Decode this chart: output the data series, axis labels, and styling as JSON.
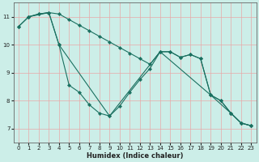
{
  "xlabel": "Humidex (Indice chaleur)",
  "background_color": "#cceee8",
  "grid_color": "#e8a8a8",
  "line_color": "#1a7060",
  "xlim": [
    -0.5,
    23.5
  ],
  "ylim": [
    6.5,
    11.5
  ],
  "yticks": [
    7,
    8,
    9,
    10,
    11
  ],
  "xticks": [
    0,
    1,
    2,
    3,
    4,
    5,
    6,
    7,
    8,
    9,
    10,
    11,
    12,
    13,
    14,
    15,
    16,
    17,
    18,
    19,
    20,
    21,
    22,
    23
  ],
  "series": [
    {
      "x": [
        0,
        1,
        2,
        3,
        4,
        5,
        6,
        7,
        8,
        9,
        10,
        11,
        12,
        13,
        14,
        15,
        16,
        17,
        18,
        19,
        20,
        21,
        22,
        23
      ],
      "y": [
        10.65,
        11.0,
        11.1,
        11.15,
        11.1,
        10.9,
        10.7,
        10.5,
        10.3,
        10.1,
        9.9,
        9.7,
        9.5,
        9.3,
        9.75,
        9.75,
        9.55,
        9.65,
        9.5,
        8.2,
        8.0,
        7.55,
        7.2,
        7.1
      ]
    },
    {
      "x": [
        0,
        1,
        2,
        3,
        4,
        5,
        6,
        7,
        8,
        9,
        10,
        11,
        12,
        13,
        14,
        15,
        16,
        17,
        18,
        19,
        20,
        21,
        22,
        23
      ],
      "y": [
        10.65,
        11.0,
        11.1,
        11.15,
        10.0,
        8.55,
        8.3,
        7.85,
        7.55,
        7.45,
        7.8,
        8.3,
        8.75,
        9.15,
        9.75,
        9.75,
        9.55,
        9.65,
        9.5,
        8.2,
        8.0,
        7.55,
        7.2,
        7.1
      ]
    },
    {
      "x": [
        1,
        3,
        4,
        9,
        14,
        19,
        21,
        22,
        23
      ],
      "y": [
        11.0,
        11.15,
        10.0,
        7.45,
        9.75,
        8.2,
        7.55,
        7.2,
        7.1
      ]
    }
  ]
}
